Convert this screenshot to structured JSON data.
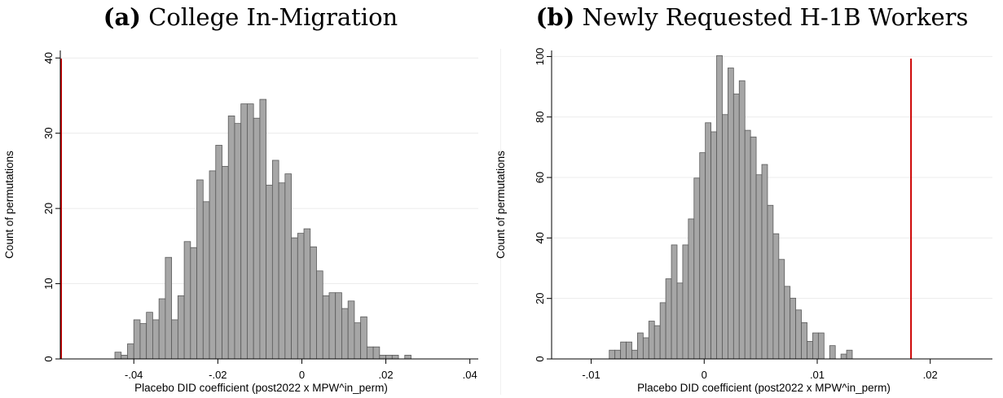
{
  "panels": {
    "a": {
      "label": "(a)",
      "title": "College In-Migration"
    },
    "b": {
      "label": "(b)",
      "title": "Newly Requested H-1B Workers"
    }
  },
  "chart_data": [
    {
      "type": "bar",
      "title": "(a) College In-Migration",
      "xlabel": "Placebo DID coefficient (post2022 x MPW^in_perm)",
      "ylabel": "Count of permutations",
      "xlim": [
        -0.0575,
        0.042
      ],
      "ylim": [
        0,
        41
      ],
      "xticks": [
        -0.04,
        -0.02,
        0,
        0.02,
        0.04
      ],
      "xtick_labels": [
        "-.04",
        "-.02",
        "0",
        ".02",
        ".04"
      ],
      "yticks": [
        0,
        10,
        20,
        30,
        40
      ],
      "ytick_labels": [
        "0",
        "10",
        "20",
        "30",
        "40"
      ],
      "grid": true,
      "bar_color": "#a6a6a6",
      "bar_edge_color": "#5a5a5a",
      "bin_width": 0.0015,
      "bin_start": -0.0445,
      "values": [
        0.9,
        0.5,
        2.0,
        5.2,
        4.7,
        6.2,
        5.2,
        8.0,
        13.5,
        5.2,
        8.4,
        15.6,
        14.8,
        23.8,
        20.9,
        25.0,
        28.4,
        25.6,
        32.3,
        31.3,
        33.9,
        33.9,
        32.0,
        34.5,
        23.1,
        26.4,
        23.4,
        24.6,
        16.1,
        16.7,
        17.3,
        14.9,
        11.7,
        8.4,
        8.8,
        8.8,
        6.7,
        7.7,
        4.8,
        5.6,
        1.6,
        1.6,
        0.5,
        0.5,
        0.5,
        0,
        0.5
      ],
      "reference_line": {
        "x": -0.0573,
        "color": "#cc0000"
      }
    },
    {
      "type": "bar",
      "title": "(b) Newly Requested H-1B Workers",
      "xlabel": "Placebo DID coefficient (post2022 x MPW^in_perm)",
      "ylabel": "Count of permutations",
      "xlim": [
        -0.0135,
        0.0255
      ],
      "ylim": [
        0,
        102
      ],
      "xticks": [
        -0.01,
        0,
        0.01,
        0.02
      ],
      "xtick_labels": [
        "-.01",
        "0",
        ".01",
        ".02"
      ],
      "yticks": [
        0,
        20,
        40,
        60,
        80,
        100
      ],
      "ytick_labels": [
        "0",
        "20",
        "40",
        "60",
        "80",
        "100"
      ],
      "grid": true,
      "bar_color": "#a6a6a6",
      "bar_edge_color": "#5a5a5a",
      "bin_width": 0.0005,
      "bin_start": -0.0084,
      "values": [
        2.9,
        2.9,
        5.6,
        5.6,
        2.9,
        8.6,
        7.0,
        12.5,
        11.0,
        18.6,
        26.5,
        37.7,
        25.1,
        37.7,
        46.3,
        59.8,
        68.2,
        78.1,
        75.1,
        100.3,
        80.8,
        96.2,
        87.6,
        92.0,
        75.6,
        73.4,
        60.9,
        64.3,
        50.8,
        41.4,
        32.9,
        24.0,
        20.1,
        16.2,
        12.0,
        5.8,
        8.6,
        8.6,
        0,
        4.4,
        0,
        1.6,
        2.9
      ],
      "reference_line": {
        "x": 0.0183,
        "color": "#cc0000"
      }
    }
  ]
}
